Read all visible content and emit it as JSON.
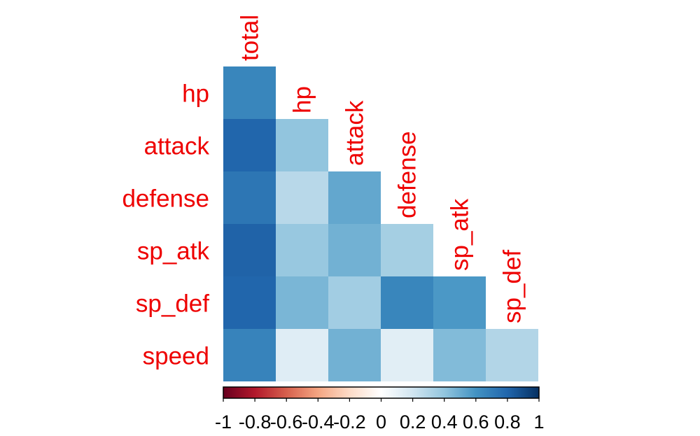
{
  "chart_data": {
    "type": "heatmap",
    "variables": [
      "total",
      "hp",
      "attack",
      "defense",
      "sp_atk",
      "sp_def",
      "speed"
    ],
    "row_labels": [
      "hp",
      "attack",
      "defense",
      "sp_atk",
      "sp_def",
      "speed"
    ],
    "column_labels": [
      "total",
      "hp",
      "attack",
      "defense",
      "sp_atk",
      "sp_def"
    ],
    "matrix_shape": "lower-triangle",
    "cells": [
      {
        "row": "hp",
        "col": "total",
        "value": 0.66
      },
      {
        "row": "attack",
        "col": "total",
        "value": 0.8
      },
      {
        "row": "attack",
        "col": "hp",
        "value": 0.4
      },
      {
        "row": "defense",
        "col": "total",
        "value": 0.73
      },
      {
        "row": "defense",
        "col": "hp",
        "value": 0.28
      },
      {
        "row": "defense",
        "col": "attack",
        "value": 0.52
      },
      {
        "row": "sp_atk",
        "col": "total",
        "value": 0.81
      },
      {
        "row": "sp_atk",
        "col": "hp",
        "value": 0.38
      },
      {
        "row": "sp_atk",
        "col": "attack",
        "value": 0.48
      },
      {
        "row": "sp_atk",
        "col": "defense",
        "value": 0.34
      },
      {
        "row": "sp_def",
        "col": "total",
        "value": 0.8
      },
      {
        "row": "sp_def",
        "col": "hp",
        "value": 0.46
      },
      {
        "row": "sp_def",
        "col": "attack",
        "value": 0.35
      },
      {
        "row": "sp_def",
        "col": "defense",
        "value": 0.66
      },
      {
        "row": "sp_def",
        "col": "sp_atk",
        "value": 0.58
      },
      {
        "row": "speed",
        "col": "total",
        "value": 0.67
      },
      {
        "row": "speed",
        "col": "hp",
        "value": 0.14
      },
      {
        "row": "speed",
        "col": "attack",
        "value": 0.48
      },
      {
        "row": "speed",
        "col": "defense",
        "value": 0.13
      },
      {
        "row": "speed",
        "col": "sp_atk",
        "value": 0.44
      },
      {
        "row": "speed",
        "col": "sp_def",
        "value": 0.3
      }
    ],
    "color_scale": {
      "range": [
        -1,
        1
      ],
      "low_color": "#67001F",
      "mid_color": "#FFFFFF",
      "high_color": "#053061",
      "ticks": [
        "-1",
        "-0.8",
        "-0.6",
        "-0.4",
        "-0.2",
        "0",
        "0.2",
        "0.4",
        "0.6",
        "0.8",
        "1"
      ]
    },
    "label_color": "#EE0000",
    "legend_position": "bottom"
  }
}
